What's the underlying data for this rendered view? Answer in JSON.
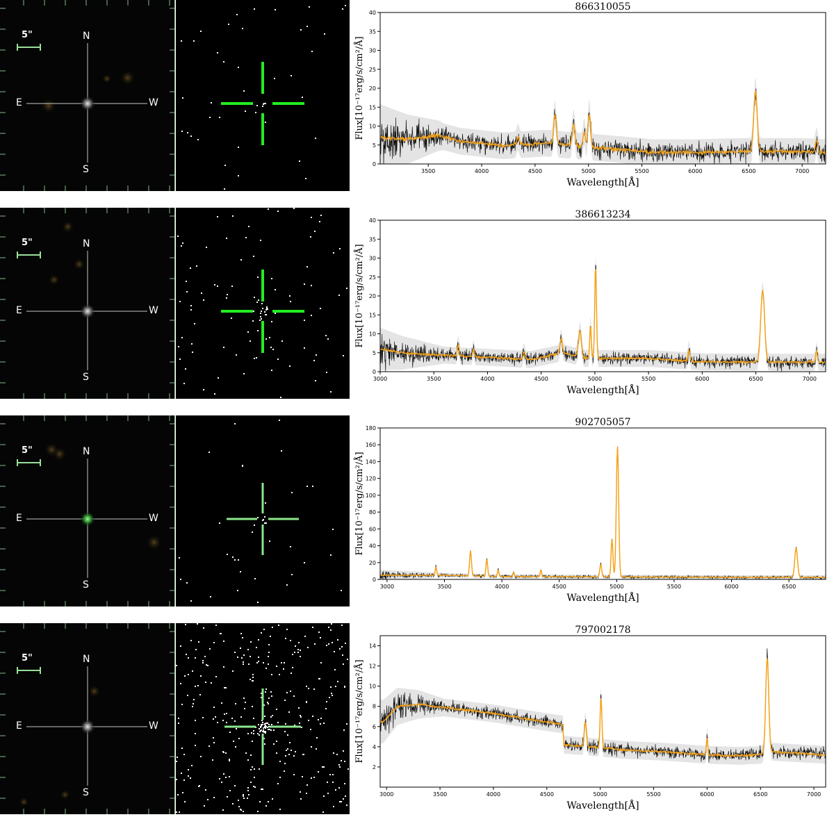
{
  "panel_rows": [
    {
      "image_labels": {
        "scale": "5\"",
        "north": "N",
        "south": "S",
        "east": "E",
        "west": "W"
      },
      "crosshair_color": "#22ee22",
      "source_color": "#c0c0c0",
      "chart_data": {
        "type": "line",
        "title": "866310055",
        "xlabel": "Wavelength[Å]",
        "ylabel": "Flux[10⁻¹⁷erg/s/cm²/Å]",
        "xlim": [
          3050,
          7220
        ],
        "ylim": [
          0,
          40
        ],
        "xticks": [
          3500,
          4000,
          4500,
          5000,
          5500,
          6000,
          6500,
          7000
        ],
        "yticks": [
          0,
          5,
          10,
          15,
          20,
          25,
          30,
          35,
          40
        ],
        "continuum": [
          [
            3050,
            7
          ],
          [
            3300,
            6.5
          ],
          [
            3600,
            7.5
          ],
          [
            3800,
            6
          ],
          [
            4200,
            4.8
          ],
          [
            4600,
            5.5
          ],
          [
            5000,
            4.5
          ],
          [
            5300,
            3.8
          ],
          [
            5600,
            3
          ],
          [
            6000,
            3
          ],
          [
            6400,
            3.3
          ],
          [
            7000,
            3.3
          ],
          [
            7220,
            3
          ]
        ],
        "noise": 2.2,
        "lines": [
          [
            4340,
            2,
            12
          ],
          [
            4686,
            8,
            12
          ],
          [
            4861,
            6,
            12
          ],
          [
            4959,
            4,
            10
          ],
          [
            5007,
            9,
            12
          ],
          [
            6563,
            16,
            16
          ],
          [
            7135,
            3,
            10
          ]
        ]
      }
    },
    {
      "image_labels": {
        "scale": "5\"",
        "north": "N",
        "south": "S",
        "east": "E",
        "west": "W"
      },
      "crosshair_color": "#22ee22",
      "source_color": "#a0a0a0",
      "chart_data": {
        "type": "line",
        "title": "386613234",
        "xlabel": "Wavelength[Å]",
        "ylabel": "Flux[10⁻¹⁷erg/s/cm²/Å]",
        "xlim": [
          3000,
          7150
        ],
        "ylim": [
          0,
          40
        ],
        "xticks": [
          3000,
          3500,
          4000,
          4500,
          5000,
          5500,
          6000,
          6500,
          7000
        ],
        "yticks": [
          0,
          5,
          10,
          15,
          20,
          25,
          30,
          35,
          40
        ],
        "continuum": [
          [
            3000,
            6
          ],
          [
            3200,
            5
          ],
          [
            3500,
            4.5
          ],
          [
            4000,
            3.8
          ],
          [
            4400,
            3.2
          ],
          [
            4700,
            5
          ],
          [
            4900,
            3.5
          ],
          [
            5500,
            3.5
          ],
          [
            6000,
            2.6
          ],
          [
            6500,
            2.5
          ],
          [
            7150,
            2.5
          ]
        ],
        "noise": 1.4,
        "lines": [
          [
            3727,
            3,
            8
          ],
          [
            3869,
            2,
            8
          ],
          [
            4340,
            2,
            8
          ],
          [
            4686,
            4,
            10
          ],
          [
            4861,
            7,
            14
          ],
          [
            4959,
            9,
            7
          ],
          [
            5007,
            25,
            8
          ],
          [
            5876,
            3,
            8
          ],
          [
            6563,
            19,
            18
          ],
          [
            7065,
            3,
            8
          ]
        ]
      }
    },
    {
      "image_labels": {
        "scale": "5\"",
        "north": "N",
        "south": "S",
        "east": "E",
        "west": "W"
      },
      "crosshair_color": "#8ce88c",
      "source_color": "#ffffff",
      "chart_data": {
        "type": "line",
        "title": "902705057",
        "xlabel": "Wavelength[Å]",
        "ylabel": "Flux[10⁻¹⁷erg/s/cm²/Å]",
        "xlim": [
          2940,
          6820
        ],
        "ylim": [
          0,
          180
        ],
        "xticks": [
          3000,
          3500,
          4000,
          4500,
          5000,
          5500,
          6000,
          6500
        ],
        "yticks": [
          0,
          20,
          40,
          60,
          80,
          100,
          120,
          140,
          160,
          180
        ],
        "continuum": [
          [
            2940,
            5
          ],
          [
            3500,
            5
          ],
          [
            4000,
            3.5
          ],
          [
            5000,
            3
          ],
          [
            6000,
            2.5
          ],
          [
            6820,
            2.5
          ]
        ],
        "noise": 1.6,
        "lines": [
          [
            3426,
            10,
            6
          ],
          [
            3727,
            30,
            8
          ],
          [
            3869,
            20,
            7
          ],
          [
            3968,
            8,
            6
          ],
          [
            4102,
            5,
            6
          ],
          [
            4340,
            8,
            6
          ],
          [
            4861,
            15,
            8
          ],
          [
            4959,
            45,
            8
          ],
          [
            5007,
            155,
            10
          ],
          [
            6563,
            35,
            12
          ]
        ]
      }
    },
    {
      "image_labels": {
        "scale": "5\"",
        "north": "N",
        "south": "S",
        "east": "E",
        "west": "W"
      },
      "crosshair_color": "#8ce88c",
      "source_color": "#ffffff",
      "chart_data": {
        "type": "line",
        "title": "797002178",
        "xlabel": "Wavelength[Å]",
        "ylabel": "Flux[10⁻¹⁷erg/s/cm²/Å]",
        "xlim": [
          2940,
          7110
        ],
        "ylim": [
          0,
          15
        ],
        "xticks": [
          3000,
          3500,
          4000,
          4500,
          5000,
          5500,
          6000,
          6500,
          7000
        ],
        "yticks": [
          2,
          4,
          6,
          8,
          10,
          12,
          14
        ],
        "continuum": [
          [
            2970,
            6.5
          ],
          [
            3100,
            8
          ],
          [
            3300,
            8.2
          ],
          [
            3600,
            7.8
          ],
          [
            4000,
            7.3
          ],
          [
            4400,
            6.6
          ],
          [
            4650,
            6.2
          ],
          [
            4660,
            4.2
          ],
          [
            4900,
            4
          ],
          [
            5200,
            3.7
          ],
          [
            5600,
            3.5
          ],
          [
            6000,
            3.2
          ],
          [
            6300,
            3.1
          ],
          [
            6500,
            3.2
          ],
          [
            6600,
            3.5
          ],
          [
            7110,
            3.2
          ]
        ],
        "noise": 0.55,
        "lines": [
          [
            4861,
            2.5,
            10
          ],
          [
            5007,
            5,
            8
          ],
          [
            6000,
            1.8,
            6
          ],
          [
            6563,
            9.5,
            14
          ]
        ]
      }
    }
  ]
}
